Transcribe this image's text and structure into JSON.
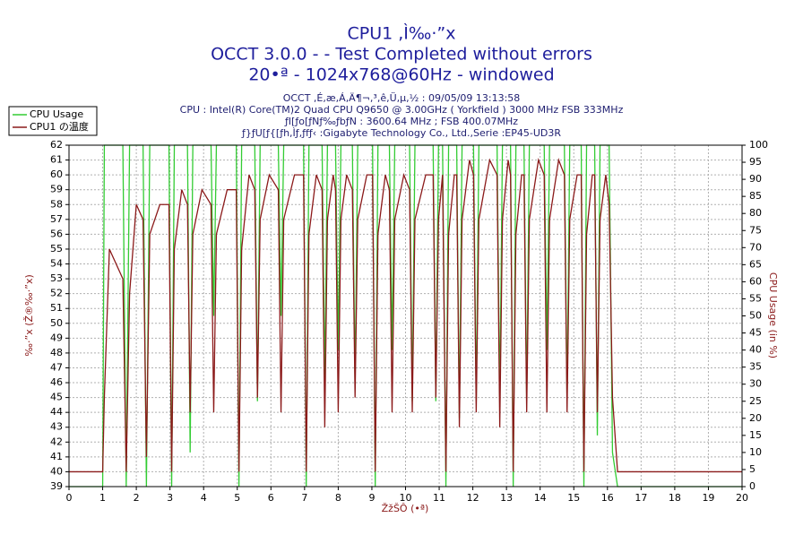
{
  "chart_data": {
    "type": "line",
    "title": [
      "CPU1 ,Ì‰·”x",
      "OCCT 3.0.0 -  - Test Completed without errors",
      "20•ª - 1024x768@60Hz - windowed"
    ],
    "subtitle": [
      "OCCT ,É,æ,Á,Ä¶¬,³,ê,Ü,µ,½ : 09/05/09 13:13:58",
      "CPU : Intel(R) Core(TM)2 Quad CPU Q9650 @ 3.00GHz ( Yorkfield ) 3000 MHz FSB 333MHz",
      "ƒI[ƒo[ƒNƒ‰ƒbƒN : 3600.64 MHz ; FSB 400.07MHz",
      "ƒ}ƒU[ƒ{[ƒh,Ìƒ‚ƒfƒ‹ :Gigabyte Technology Co., Ltd.,Serie :EP45-UD3R"
    ],
    "xlabel": "ŽžŠÔ (•ª)",
    "ylabel": "‰·”x (Ž®‰·”x)",
    "y2label": "CPU Usage (in %)",
    "x": [
      0,
      1.0,
      1.05,
      1.2,
      1.4,
      1.6,
      1.7,
      1.8,
      2.0,
      2.2,
      2.3,
      2.4,
      2.7,
      2.97,
      3.05,
      3.13,
      3.35,
      3.52,
      3.6,
      3.68,
      3.95,
      4.22,
      4.3,
      4.38,
      4.7,
      4.97,
      5.05,
      5.13,
      5.35,
      5.52,
      5.6,
      5.68,
      5.95,
      6.22,
      6.3,
      6.38,
      6.7,
      6.97,
      7.05,
      7.13,
      7.35,
      7.52,
      7.6,
      7.68,
      7.85,
      7.92,
      8.0,
      8.08,
      8.25,
      8.42,
      8.5,
      8.58,
      8.85,
      9.02,
      9.1,
      9.18,
      9.4,
      9.52,
      9.6,
      9.68,
      9.95,
      10.12,
      10.2,
      10.28,
      10.6,
      10.82,
      10.9,
      10.98,
      11.1,
      11.2,
      11.28,
      11.45,
      11.52,
      11.6,
      11.68,
      11.9,
      12.02,
      12.1,
      12.18,
      12.5,
      12.72,
      12.8,
      12.88,
      13.05,
      13.12,
      13.2,
      13.28,
      13.45,
      13.52,
      13.6,
      13.68,
      13.95,
      14.12,
      14.2,
      14.28,
      14.55,
      14.72,
      14.8,
      14.88,
      15.1,
      15.22,
      15.3,
      15.38,
      15.55,
      15.62,
      15.7,
      15.78,
      15.95,
      16.05,
      16.15,
      16.3,
      20
    ],
    "series": [
      {
        "name": "CPU Usage",
        "color": "#33cc33",
        "axis": "y2",
        "values": [
          0,
          0,
          100,
          100,
          100,
          100,
          0,
          100,
          100,
          100,
          0,
          100,
          100,
          100,
          0,
          100,
          100,
          100,
          10,
          100,
          100,
          100,
          50,
          100,
          100,
          100,
          0,
          100,
          100,
          100,
          25,
          100,
          100,
          100,
          50,
          100,
          100,
          100,
          0,
          100,
          100,
          100,
          30,
          100,
          100,
          100,
          40,
          100,
          100,
          100,
          30,
          100,
          100,
          100,
          0,
          100,
          100,
          100,
          40,
          100,
          100,
          100,
          25,
          100,
          100,
          100,
          25,
          100,
          100,
          0,
          100,
          100,
          100,
          20,
          100,
          100,
          100,
          25,
          100,
          100,
          100,
          25,
          100,
          100,
          100,
          0,
          100,
          100,
          100,
          25,
          100,
          100,
          100,
          40,
          100,
          100,
          100,
          25,
          100,
          100,
          100,
          0,
          100,
          100,
          100,
          15,
          100,
          100,
          100,
          10,
          0,
          0
        ]
      },
      {
        "name": "CPU1 の温度",
        "color": "#8b1a1a",
        "axis": "y",
        "values": [
          40,
          40,
          45,
          55,
          54,
          53,
          40,
          52,
          58,
          57,
          41,
          56,
          58,
          58,
          40,
          55,
          59,
          58,
          44,
          56,
          59,
          58,
          44,
          56,
          59,
          59,
          40,
          55,
          60,
          59,
          45,
          57,
          60,
          59,
          44,
          57,
          60,
          60,
          40,
          56,
          60,
          59,
          43,
          57,
          60,
          59,
          44,
          57,
          60,
          59,
          45,
          57,
          60,
          60,
          40,
          56,
          60,
          59,
          44,
          57,
          60,
          59,
          44,
          57,
          60,
          60,
          45,
          57,
          60,
          40,
          56,
          60,
          60,
          43,
          57,
          61,
          60,
          44,
          57,
          61,
          60,
          43,
          57,
          61,
          60,
          40,
          56,
          60,
          60,
          44,
          57,
          61,
          60,
          44,
          57,
          61,
          60,
          44,
          57,
          60,
          60,
          40,
          56,
          60,
          60,
          44,
          57,
          60,
          58,
          45,
          40,
          40
        ]
      }
    ],
    "xlim": [
      0,
      20
    ],
    "xticks": [
      0,
      1,
      2,
      3,
      4,
      5,
      6,
      7,
      8,
      9,
      10,
      11,
      12,
      13,
      14,
      15,
      16,
      17,
      18,
      19,
      20
    ],
    "ylim": [
      39,
      62
    ],
    "yticks": [
      39,
      40,
      41,
      42,
      43,
      44,
      45,
      46,
      47,
      48,
      49,
      50,
      51,
      52,
      53,
      54,
      55,
      56,
      57,
      58,
      59,
      60,
      61,
      62
    ],
    "y2lim": [
      0,
      100
    ],
    "y2ticks": [
      0,
      5,
      10,
      15,
      20,
      25,
      30,
      35,
      40,
      45,
      50,
      55,
      60,
      65,
      70,
      75,
      80,
      85,
      90,
      95,
      100
    ],
    "grid": true,
    "legend": "top-left"
  }
}
